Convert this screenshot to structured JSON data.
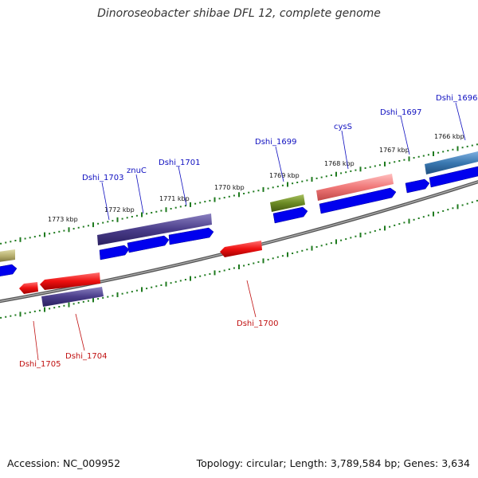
{
  "title": "Dinoroseobacter shibae DFL 12, complete genome",
  "footer": {
    "accession": "Accession: NC_009952",
    "topology": "Topology: circular; Length: 3,789,584 bp; Genes: 3,634"
  },
  "colors": {
    "backbone": "#888888",
    "tick": "#1e7a1e",
    "forward_label": "#1010c0",
    "reverse_label": "#c01010",
    "cds": "#0000ee",
    "reverse_gene": "#ee1010",
    "pink_gene": "#f07878",
    "dark_gene": "#4a3d8a",
    "olive_gene": "#6b8a24",
    "teal_gene": "#3a78b0",
    "khaki_gene": "#b8b070"
  },
  "kbp_labels": [
    "1766 kbp",
    "1767 kbp",
    "1768 kbp",
    "1769 kbp",
    "1770 kbp",
    "1771 kbp",
    "1772 kbp",
    "1773 kbp"
  ],
  "forward_genes": [
    "Dshi_1696",
    "Dshi_1697",
    "cysS",
    "Dshi_1699",
    "Dshi_1701",
    "znuC",
    "Dshi_1703"
  ],
  "reverse_genes": [
    "Dshi_1700",
    "Dshi_1704",
    "Dshi_1705"
  ]
}
